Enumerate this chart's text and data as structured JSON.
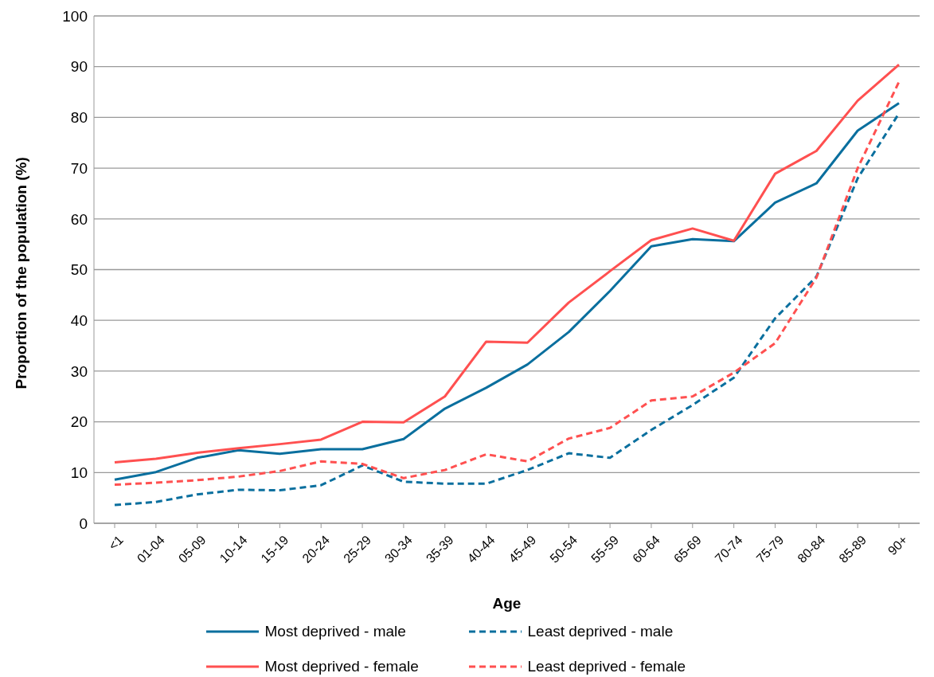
{
  "chart_data": {
    "type": "line",
    "xlabel": "Age",
    "ylabel": "Proportion of the population (%)",
    "categories": [
      "<1",
      "01-04",
      "05-09",
      "10-14",
      "15-19",
      "20-24",
      "25-29",
      "30-34",
      "35-39",
      "40-44",
      "45-49",
      "50-54",
      "55-59",
      "60-64",
      "65-69",
      "70-74",
      "75-79",
      "80-84",
      "85-89",
      "90+"
    ],
    "series": [
      {
        "name": "Most deprived - male",
        "color": "#0a6f9e",
        "line_style": "solid",
        "values": [
          8.6,
          10.1,
          12.9,
          14.4,
          13.7,
          14.6,
          14.6,
          16.6,
          22.6,
          26.7,
          31.3,
          37.7,
          45.8,
          54.6,
          56.0,
          55.6,
          63.2,
          67.0,
          77.4,
          82.8
        ]
      },
      {
        "name": "Least deprived - male",
        "color": "#0a6f9e",
        "line_style": "dashed",
        "values": [
          3.6,
          4.2,
          5.7,
          6.6,
          6.5,
          7.5,
          11.4,
          8.2,
          7.8,
          7.8,
          10.5,
          13.8,
          12.9,
          18.4,
          23.3,
          28.7,
          40.4,
          48.6,
          68.0,
          80.8
        ]
      },
      {
        "name": "Most deprived - female",
        "color": "#ff5050",
        "line_style": "solid",
        "values": [
          12.0,
          12.7,
          13.9,
          14.8,
          15.6,
          16.5,
          20.0,
          19.9,
          25.0,
          35.8,
          35.6,
          43.5,
          49.7,
          55.8,
          58.1,
          55.7,
          68.9,
          73.4,
          83.3,
          90.4
        ]
      },
      {
        "name": "Least deprived - female",
        "color": "#ff5050",
        "line_style": "dashed",
        "values": [
          7.6,
          8.0,
          8.5,
          9.2,
          10.3,
          12.2,
          11.7,
          8.9,
          10.5,
          13.6,
          12.2,
          16.7,
          18.8,
          24.2,
          25.0,
          29.7,
          35.5,
          48.4,
          70.0,
          87.0
        ]
      }
    ],
    "ylim": [
      0,
      100
    ],
    "yticks": [
      0,
      10,
      20,
      30,
      40,
      50,
      60,
      70,
      80,
      90,
      100
    ],
    "grid": "y",
    "legend": "bottom",
    "marker": "none"
  }
}
